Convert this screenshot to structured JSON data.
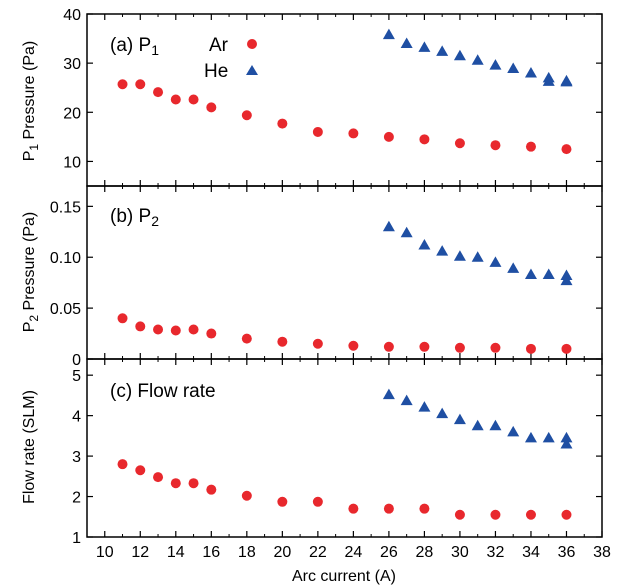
{
  "figure": {
    "xlabel": "Arc current (A)"
  },
  "legend": {
    "ar_label": "Ar",
    "he_label": "He"
  },
  "colors": {
    "ar": "#e8282d",
    "he": "#1f4fa3",
    "axis": "#000000"
  },
  "chart_data": [
    {
      "type": "scatter",
      "panel": "a",
      "title": "(a) P",
      "title_sub": "1",
      "ylabel": "P",
      "ylabel_sub": "1",
      "ylabel_rest": " Pressure (Pa)",
      "xlim": [
        9,
        38
      ],
      "ylim": [
        5,
        40
      ],
      "xticks": [
        10,
        12,
        14,
        16,
        18,
        20,
        22,
        24,
        26,
        28,
        30,
        32,
        34,
        36,
        38
      ],
      "yticks": [
        10,
        20,
        30,
        40
      ],
      "ytick_labels": [
        "10",
        "20",
        "30",
        "40"
      ],
      "legend_position": "top-center",
      "series": [
        {
          "name": "Ar",
          "marker": "circle",
          "x": [
            11,
            12,
            13,
            14,
            15,
            16,
            18,
            20,
            22,
            24,
            26,
            28,
            30,
            32,
            34,
            36
          ],
          "y": [
            25.7,
            25.7,
            24.1,
            22.6,
            22.6,
            21.0,
            19.4,
            17.7,
            16.0,
            15.7,
            15.0,
            14.5,
            13.7,
            13.3,
            13.0,
            12.5
          ]
        },
        {
          "name": "He",
          "marker": "triangle",
          "x": [
            26,
            27,
            28,
            29,
            30,
            31,
            32,
            33,
            34,
            35,
            35,
            36,
            36
          ],
          "y": [
            35.8,
            34.0,
            33.2,
            32.4,
            31.5,
            30.6,
            29.6,
            28.9,
            28.0,
            27.0,
            26.3,
            26.4,
            26.2
          ]
        }
      ]
    },
    {
      "type": "scatter",
      "panel": "b",
      "title": "(b) P",
      "title_sub": "2",
      "ylabel": "P",
      "ylabel_sub": "2",
      "ylabel_rest": " Pressure (Pa)",
      "xlim": [
        9,
        38
      ],
      "ylim": [
        0,
        0.17
      ],
      "xticks": [
        10,
        12,
        14,
        16,
        18,
        20,
        22,
        24,
        26,
        28,
        30,
        32,
        34,
        36,
        38
      ],
      "yticks": [
        0,
        0.05,
        0.1,
        0.15
      ],
      "ytick_labels": [
        "0",
        "0.05",
        "0.10",
        "0.15"
      ],
      "series": [
        {
          "name": "Ar",
          "marker": "circle",
          "x": [
            11,
            12,
            13,
            14,
            15,
            16,
            18,
            20,
            22,
            24,
            26,
            28,
            30,
            32,
            34,
            36
          ],
          "y": [
            0.04,
            0.032,
            0.029,
            0.028,
            0.029,
            0.025,
            0.02,
            0.017,
            0.015,
            0.013,
            0.012,
            0.012,
            0.011,
            0.011,
            0.01,
            0.01
          ]
        },
        {
          "name": "He",
          "marker": "triangle",
          "x": [
            26,
            27,
            28,
            29,
            30,
            31,
            32,
            33,
            34,
            35,
            36,
            36
          ],
          "y": [
            0.13,
            0.124,
            0.112,
            0.106,
            0.101,
            0.1,
            0.095,
            0.089,
            0.083,
            0.083,
            0.082,
            0.077
          ]
        }
      ]
    },
    {
      "type": "scatter",
      "panel": "c",
      "title": "(c) Flow rate",
      "ylabel": "Flow rate (SLM)",
      "xlim": [
        9,
        38
      ],
      "ylim": [
        1,
        5.4
      ],
      "xticks": [
        10,
        12,
        14,
        16,
        18,
        20,
        22,
        24,
        26,
        28,
        30,
        32,
        34,
        36,
        38
      ],
      "xtick_labels": [
        "10",
        "12",
        "14",
        "16",
        "18",
        "20",
        "22",
        "24",
        "26",
        "28",
        "30",
        "32",
        "34",
        "36",
        "38"
      ],
      "yticks": [
        1,
        2,
        3,
        4,
        5
      ],
      "ytick_labels": [
        "1",
        "2",
        "3",
        "4",
        "5"
      ],
      "series": [
        {
          "name": "Ar",
          "marker": "circle",
          "x": [
            11,
            12,
            13,
            14,
            15,
            16,
            18,
            20,
            22,
            24,
            26,
            28,
            30,
            32,
            34,
            36
          ],
          "y": [
            2.8,
            2.65,
            2.48,
            2.33,
            2.33,
            2.17,
            2.02,
            1.87,
            1.87,
            1.7,
            1.7,
            1.7,
            1.55,
            1.55,
            1.55,
            1.55
          ]
        },
        {
          "name": "He",
          "marker": "triangle",
          "x": [
            26,
            27,
            28,
            29,
            30,
            31,
            32,
            33,
            34,
            35,
            36,
            36
          ],
          "y": [
            4.52,
            4.37,
            4.21,
            4.05,
            3.9,
            3.75,
            3.75,
            3.6,
            3.45,
            3.45,
            3.45,
            3.3
          ]
        }
      ]
    }
  ]
}
